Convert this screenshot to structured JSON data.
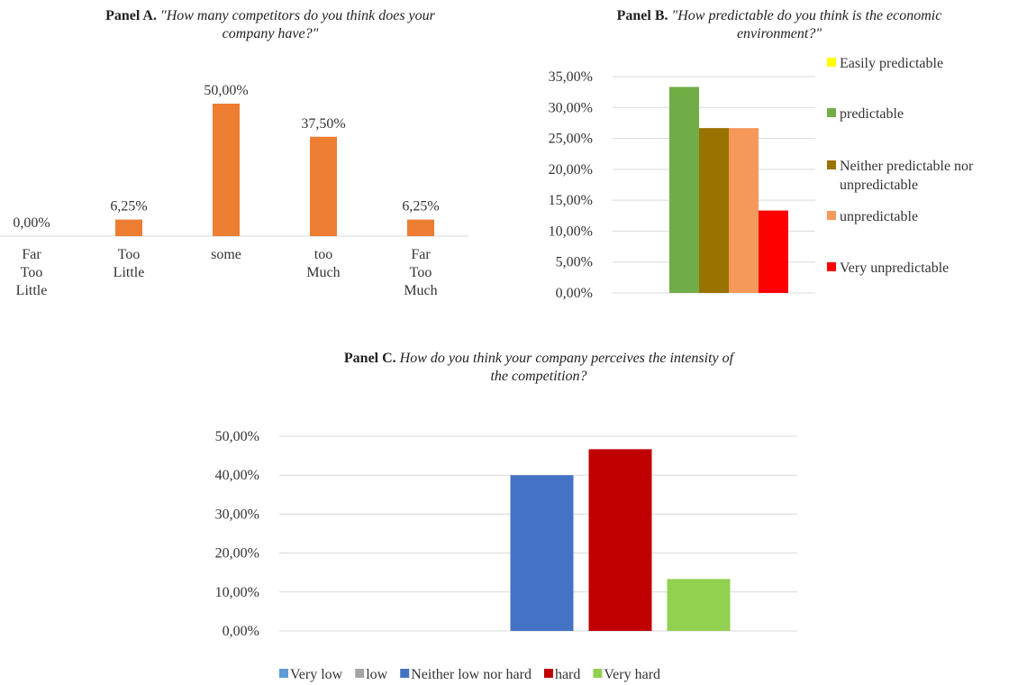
{
  "chart_data": [
    {
      "type": "bar",
      "title_label": "Panel A.",
      "title": "\"How many competitors do you think does your company have?\"",
      "categories": [
        "Far Too Little",
        "Too Little",
        "some",
        "too Much",
        "Far Too Much"
      ],
      "values": [
        0,
        6.25,
        50,
        37.5,
        6.25
      ],
      "value_labels": [
        "0,00%",
        "6,25%",
        "50,00%",
        "37,50%",
        "6,25%"
      ],
      "color": "#ed7d31"
    },
    {
      "type": "grouped_bar",
      "title_label": "Panel B.",
      "title": "\"How predictable do you think is the economic environment?\"",
      "categories": [
        null
      ],
      "series": [
        {
          "name": "Easily predictable",
          "color": "#ffff00",
          "values": [
            0
          ]
        },
        {
          "name": "predictable",
          "color": "#70ad47",
          "values": [
            33.33
          ]
        },
        {
          "name": "Neither predictable nor unpredictable",
          "color": "#997300",
          "values": [
            26.67
          ]
        },
        {
          "name": "unpredictable",
          "color": "#f4995a",
          "values": [
            26.67
          ]
        },
        {
          "name": "Very unpredictable",
          "color": "#ff0000",
          "values": [
            13.33
          ]
        }
      ],
      "ylim": [
        0,
        35
      ],
      "yticks": [
        {
          "value": 0,
          "label": "0,00%"
        },
        {
          "value": 5,
          "label": "5,00%"
        },
        {
          "value": 10,
          "label": "10,00%"
        },
        {
          "value": 15,
          "label": "15,00%"
        },
        {
          "value": 20,
          "label": "20,00%"
        },
        {
          "value": 25,
          "label": "25,00%"
        },
        {
          "value": 30,
          "label": "30,00%"
        },
        {
          "value": 35,
          "label": "35,00%"
        }
      ],
      "grid": true,
      "legend": "right"
    },
    {
      "type": "grouped_bar",
      "title_label": "Panel C.",
      "title": "How do you think your company perceives the intensity of the competition?",
      "categories": [
        null
      ],
      "series": [
        {
          "name": "Very low",
          "color": "#5b9bd5",
          "values": [
            0
          ]
        },
        {
          "name": "low",
          "color": "#a5a5a5",
          "values": [
            0
          ]
        },
        {
          "name": "Neither low nor hard",
          "color": "#4472c4",
          "values": [
            40
          ]
        },
        {
          "name": "hard",
          "color": "#c00000",
          "values": [
            46.67
          ]
        },
        {
          "name": "Very hard",
          "color": "#92d050",
          "values": [
            13.33
          ]
        }
      ],
      "ylim": [
        0,
        50
      ],
      "yticks": [
        {
          "value": 0,
          "label": "0,00%"
        },
        {
          "value": 10,
          "label": "10,00%"
        },
        {
          "value": 20,
          "label": "20,00%"
        },
        {
          "value": 30,
          "label": "30,00%"
        },
        {
          "value": 40,
          "label": "40,00%"
        },
        {
          "value": 50,
          "label": "50,00%"
        }
      ],
      "grid": true,
      "legend": "bottom"
    }
  ]
}
